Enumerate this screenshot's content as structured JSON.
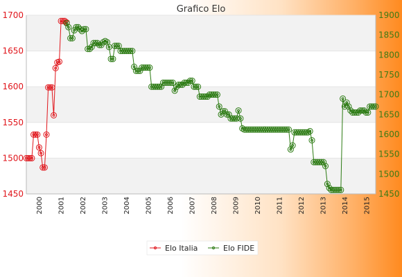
{
  "chart_data": {
    "type": "line",
    "title": "Grafico Elo",
    "colors": {
      "italia": "#e0151b",
      "fide": "#2b7a12",
      "band": "#f2f2f2",
      "axis": "#bbbbbb"
    },
    "y_left": {
      "min": 1450,
      "max": 1700,
      "ticks": [
        1450,
        1500,
        1550,
        1600,
        1650,
        1700
      ],
      "color": "#e0151b"
    },
    "y_right": {
      "min": 1450,
      "max": 1900,
      "ticks": [
        1450,
        1500,
        1550,
        1600,
        1650,
        1700,
        1750,
        1800,
        1850,
        1900
      ],
      "color": "#3d7a14"
    },
    "x_tick_labels": [
      "2000",
      "2001",
      "2002",
      "2003",
      "2004",
      "2005",
      "2006",
      "2007",
      "2008",
      "2009",
      "2010",
      "2011",
      "2012",
      "2013",
      "2014",
      "2015"
    ],
    "legend": {
      "position": "bottom",
      "items": [
        "Elo Italia",
        "Elo FIDE"
      ]
    },
    "series": [
      {
        "name": "Elo Italia",
        "axis": "left",
        "values": [
          1500,
          1500,
          1500,
          1500,
          1533,
          1533,
          1533,
          1515,
          1507,
          1487,
          1487,
          1533,
          1599,
          1599,
          1599,
          1560,
          1626,
          1634,
          1635,
          1692,
          1692,
          1692,
          1690
        ]
      },
      {
        "name": "Elo FIDE",
        "axis": "right",
        "values": [
          1880,
          1870,
          1842,
          1842,
          1862,
          1870,
          1870,
          1865,
          1860,
          1865,
          1865,
          1815,
          1815,
          1820,
          1830,
          1830,
          1830,
          1825,
          1825,
          1832,
          1835,
          1832,
          1820,
          1790,
          1790,
          1823,
          1823,
          1823,
          1810,
          1810,
          1810,
          1810,
          1810,
          1810,
          1810,
          1770,
          1760,
          1760,
          1760,
          1768,
          1768,
          1768,
          1768,
          1768,
          1720,
          1720,
          1720,
          1720,
          1720,
          1720,
          1730,
          1730,
          1730,
          1730,
          1730,
          1730,
          1710,
          1720,
          1725,
          1725,
          1725,
          1730,
          1730,
          1730,
          1735,
          1735,
          1720,
          1720,
          1720,
          1695,
          1695,
          1695,
          1695,
          1695,
          1700,
          1700,
          1700,
          1700,
          1700,
          1670,
          1650,
          1658,
          1658,
          1650,
          1650,
          1640,
          1640,
          1640,
          1640,
          1660,
          1640,
          1615,
          1612,
          1612,
          1612,
          1612,
          1612,
          1612,
          1612,
          1612,
          1612,
          1612,
          1612,
          1612,
          1612,
          1612,
          1612,
          1612,
          1612,
          1612,
          1612,
          1612,
          1612,
          1612,
          1612,
          1612,
          1562,
          1572,
          1605,
          1605,
          1605,
          1605,
          1605,
          1605,
          1605,
          1605,
          1608,
          1585,
          1530,
          1530,
          1530,
          1530,
          1530,
          1530,
          1520,
          1475,
          1465,
          1460,
          1460,
          1460,
          1460,
          1460,
          1460,
          1690,
          1670,
          1680,
          1670,
          1660,
          1655,
          1655,
          1655,
          1655,
          1660,
          1660,
          1660,
          1655,
          1655,
          1670,
          1670,
          1670,
          1670
        ]
      }
    ]
  }
}
